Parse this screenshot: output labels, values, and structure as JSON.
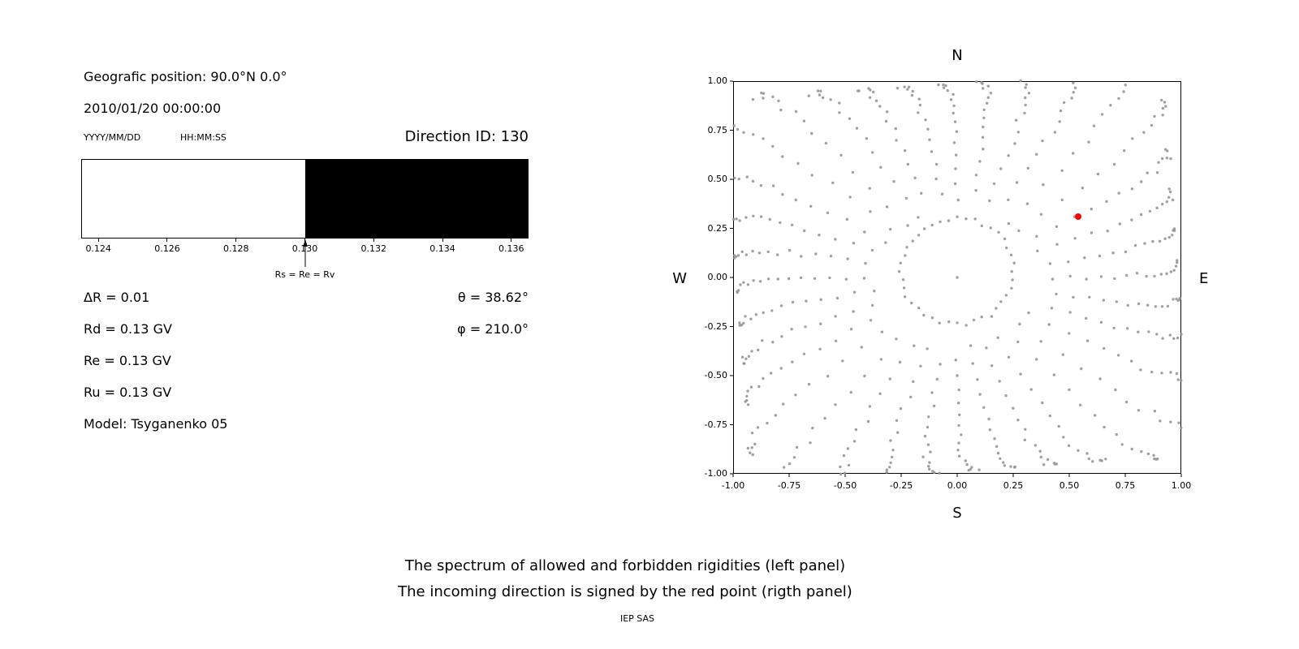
{
  "colors": {
    "background": "#ffffff",
    "axis": "#000000",
    "allowed_fill": "#ffffff",
    "forbidden_fill": "#000000",
    "dot_gray": "#969696",
    "red_point": "#ff0000"
  },
  "left_panel": {
    "geographic_position": "Geografic position: 90.0°N 0.0°",
    "datetime": "2010/01/20 00:00:00",
    "date_format_hint": "YYYY/MM/DD",
    "time_format_hint": "HH:MM:SS",
    "direction_id": "Direction ID: 130",
    "arrow_label": "Rs = Re = Rv",
    "delta_r": "ΔR = 0.01",
    "rd": "Rd = 0.13 GV",
    "re": "Re = 0.13 GV",
    "ru": "Ru = 0.13 GV",
    "model": "Model: Tsyganenko 05",
    "theta": "θ = 38.62°",
    "phi": "φ = 210.0°"
  },
  "right_panel": {
    "north": "N",
    "south": "S",
    "west": "W",
    "east": "E"
  },
  "caption": {
    "line1": "The spectrum of allowed and forbidden rigidities (left panel)",
    "line2": "The incoming direction is signed by the red point (rigth panel)",
    "credit": "IEP SAS"
  },
  "chart_data": [
    {
      "type": "bar",
      "panel": "left",
      "title": "Spectrum of allowed (white) and forbidden (black) rigidities",
      "x_range": [
        0.1235,
        0.1365
      ],
      "x_ticks": [
        0.124,
        0.126,
        0.128,
        0.13,
        0.132,
        0.134,
        0.136
      ],
      "x_tick_labels": [
        "0.124",
        "0.126",
        "0.128",
        "0.130",
        "0.132",
        "0.134",
        "0.136"
      ],
      "allowed_interval": [
        0.1235,
        0.13
      ],
      "forbidden_interval": [
        0.13,
        0.1365
      ],
      "boundary": 0.13,
      "boundary_label": "Rs = Re = Rv",
      "rigidities_gv": {
        "delta_R": 0.01,
        "Rd": 0.13,
        "Re": 0.13,
        "Ru": 0.13,
        "Rs": 0.13,
        "Rv": 0.13
      },
      "model": "Tsyganenko 05",
      "theta_deg": 38.62,
      "phi_deg": 210.0
    },
    {
      "type": "scatter",
      "panel": "right",
      "title": "Incoming direction map (red point = incoming direction)",
      "xlim": [
        -1,
        1
      ],
      "ylim": [
        -1,
        1
      ],
      "x_ticks": [
        -1,
        -0.75,
        -0.5,
        -0.25,
        0,
        0.25,
        0.5,
        0.75,
        1
      ],
      "x_tick_labels": [
        "-1.00",
        "-0.75",
        "-0.50",
        "-0.25",
        "0.00",
        "0.25",
        "0.50",
        "0.75",
        "1.00"
      ],
      "y_ticks": [
        -1,
        -0.75,
        -0.5,
        -0.25,
        0,
        0.25,
        0.5,
        0.75,
        1
      ],
      "y_tick_labels": [
        "-1.00",
        "-0.75",
        "-0.50",
        "-0.25",
        "0.00",
        "0.25",
        "0.50",
        "0.75",
        "1.00"
      ],
      "compass": {
        "top": "N",
        "bottom": "S",
        "left": "W",
        "right": "E"
      },
      "red_point": {
        "x": 0.54,
        "y": 0.31
      },
      "gray_dots_pattern": {
        "num_rays": 36,
        "points_per_ray": 16,
        "ray_inner_radius": 0.4,
        "ray_outer_max": 1.3,
        "end_cluster_exponent": 2.2,
        "ray_curl": 0.08,
        "ring": {
          "cx": 0.0,
          "cy": 0.03,
          "rx": 0.25,
          "ry": 0.27,
          "num_points": 40
        },
        "center_dot": true,
        "dot_radius_px": 1.7,
        "red_radius_px": 4
      }
    }
  ]
}
